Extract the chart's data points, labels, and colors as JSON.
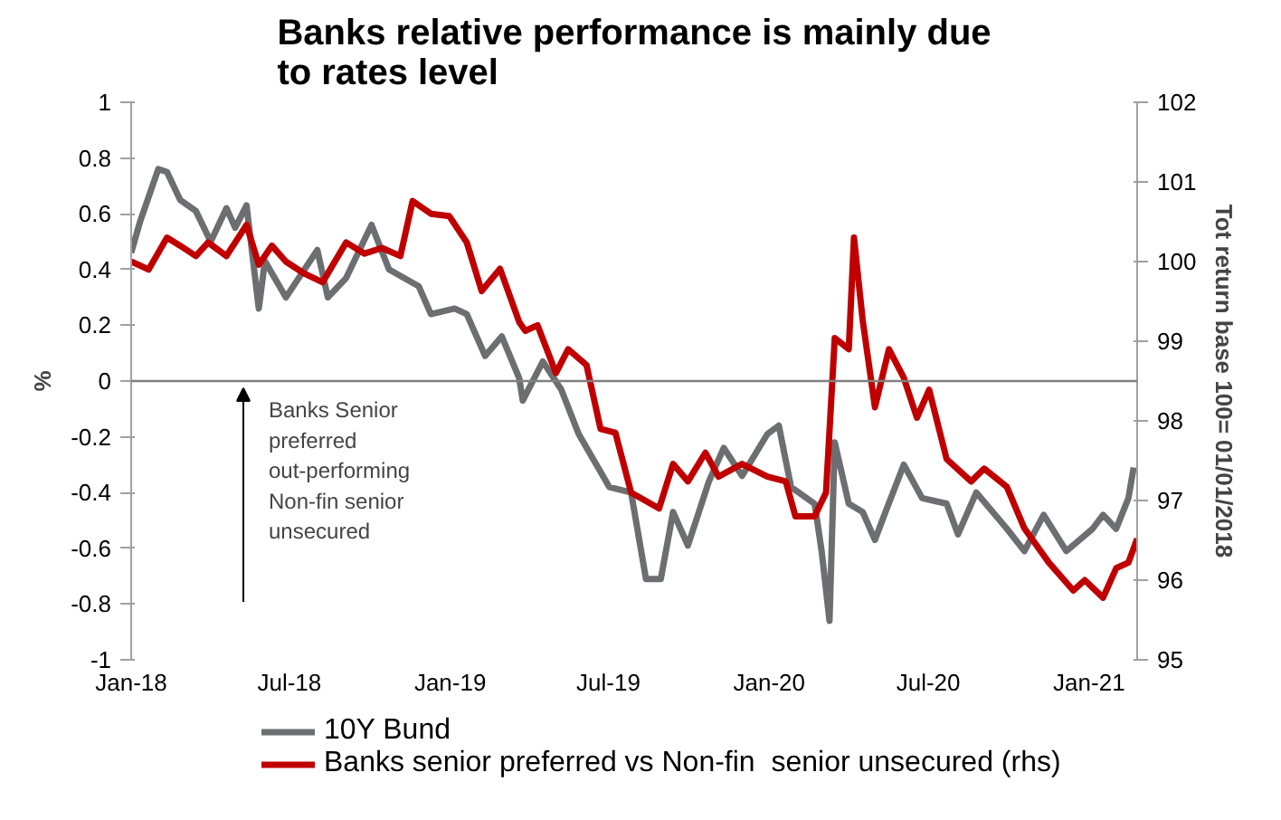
{
  "chart_data": {
    "type": "line",
    "title": "Banks relative performance is mainly due to rates level",
    "ylabel": "%",
    "y2label": "Tot return base 100= 01/01/2018",
    "xlim": [
      "2018-01-01",
      "2021-02-25"
    ],
    "xticks": [
      {
        "value": "2018-01-01",
        "label": "Jan-18"
      },
      {
        "value": "2018-07-01",
        "label": "Jul-18"
      },
      {
        "value": "2019-01-01",
        "label": "Jan-19"
      },
      {
        "value": "2019-07-01",
        "label": "Jul-19"
      },
      {
        "value": "2020-01-01",
        "label": "Jan-20"
      },
      {
        "value": "2020-07-01",
        "label": "Jul-20"
      },
      {
        "value": "2021-01-01",
        "label": "Jan-21"
      }
    ],
    "ylim": [
      -1,
      1
    ],
    "yticks": [
      -1,
      -0.8,
      -0.6,
      -0.4,
      -0.2,
      0,
      0.2,
      0.4,
      0.6,
      0.8,
      1
    ],
    "y2lim": [
      95,
      102
    ],
    "y2ticks": [
      95,
      96,
      97,
      98,
      99,
      100,
      101,
      102
    ],
    "grid": false,
    "legend": "bottom",
    "line_style": "solid",
    "marker": "none",
    "ref_lines": [
      {
        "axis": "y",
        "value": 0,
        "color": "#808080"
      }
    ],
    "annotations": [
      "Banks Senior preferred out-performing Non-fin senior unsecured"
    ],
    "series": [
      {
        "name": "10Y Bund",
        "color": "#6d6e71",
        "x": [
          "2018-01-01",
          "2018-01-11",
          "2018-02-01",
          "2018-02-11",
          "2018-02-26",
          "2018-03-16",
          "2018-04-02",
          "2018-04-20",
          "2018-04-30",
          "2018-05-13",
          "2018-05-27",
          "2018-06-03",
          "2018-06-27",
          "2018-08-02",
          "2018-08-14",
          "2018-09-04",
          "2018-10-03",
          "2018-10-23",
          "2018-11-26",
          "2018-12-10",
          "2019-01-06",
          "2019-01-20",
          "2019-02-10",
          "2019-03-01",
          "2019-03-21",
          "2019-03-25",
          "2019-04-17",
          "2019-05-08",
          "2019-05-28",
          "2019-07-02",
          "2019-07-27",
          "2019-08-13",
          "2019-08-30",
          "2019-09-13",
          "2019-09-30",
          "2019-10-24",
          "2019-11-10",
          "2019-12-01",
          "2019-12-30",
          "2020-01-12",
          "2020-01-26",
          "2020-02-22",
          "2020-03-01",
          "2020-03-10",
          "2020-03-16",
          "2020-04-01",
          "2020-04-17",
          "2020-05-01",
          "2020-05-13",
          "2020-06-03",
          "2020-06-24",
          "2020-07-22",
          "2020-08-04",
          "2020-08-25",
          "2020-09-29",
          "2020-10-19",
          "2020-11-10",
          "2020-12-06",
          "2021-01-05",
          "2021-01-17",
          "2021-02-01",
          "2021-02-15",
          "2021-02-21"
        ],
        "values": [
          0.46,
          0.57,
          0.76,
          0.75,
          0.65,
          0.61,
          0.5,
          0.62,
          0.55,
          0.63,
          0.26,
          0.43,
          0.3,
          0.47,
          0.3,
          0.37,
          0.56,
          0.4,
          0.34,
          0.24,
          0.26,
          0.24,
          0.09,
          0.16,
          0.01,
          -0.07,
          0.07,
          -0.03,
          -0.19,
          -0.38,
          -0.4,
          -0.71,
          -0.71,
          -0.47,
          -0.59,
          -0.36,
          -0.24,
          -0.34,
          -0.19,
          -0.16,
          -0.38,
          -0.44,
          -0.61,
          -0.86,
          -0.22,
          -0.44,
          -0.47,
          -0.57,
          -0.47,
          -0.3,
          -0.42,
          -0.44,
          -0.55,
          -0.4,
          -0.53,
          -0.61,
          -0.48,
          -0.61,
          -0.53,
          -0.48,
          -0.53,
          -0.42,
          -0.31
        ]
      },
      {
        "name": "Banks senior preferred vs Non-fin  senior unsecured (rhs)",
        "color": "#c00000",
        "axis": "y2",
        "x": [
          "2018-01-01",
          "2018-01-21",
          "2018-02-11",
          "2018-02-26",
          "2018-03-16",
          "2018-03-30",
          "2018-04-20",
          "2018-05-13",
          "2018-05-27",
          "2018-06-11",
          "2018-06-27",
          "2018-07-18",
          "2018-08-08",
          "2018-09-04",
          "2018-09-25",
          "2018-10-15",
          "2018-11-05",
          "2018-11-19",
          "2018-12-10",
          "2018-12-31",
          "2019-01-20",
          "2019-02-06",
          "2019-02-27",
          "2019-03-21",
          "2019-03-28",
          "2019-04-11",
          "2019-05-02",
          "2019-05-16",
          "2019-06-06",
          "2019-06-22",
          "2019-07-09",
          "2019-07-27",
          "2019-08-28",
          "2019-09-13",
          "2019-09-30",
          "2019-10-20",
          "2019-11-04",
          "2019-12-01",
          "2019-12-30",
          "2020-01-20",
          "2020-01-31",
          "2020-02-22",
          "2020-03-06",
          "2020-03-16",
          "2020-04-01",
          "2020-04-07",
          "2020-04-17",
          "2020-05-01",
          "2020-05-17",
          "2020-06-03",
          "2020-06-18",
          "2020-07-02",
          "2020-07-22",
          "2020-08-19",
          "2020-09-03",
          "2020-09-29",
          "2020-10-19",
          "2020-11-16",
          "2020-12-14",
          "2020-12-27",
          "2021-01-17",
          "2021-02-01",
          "2021-02-15",
          "2021-02-25"
        ],
        "values": [
          100.0,
          99.9,
          100.3,
          100.2,
          100.07,
          100.24,
          100.07,
          100.46,
          99.96,
          100.2,
          100.0,
          99.85,
          99.74,
          100.24,
          100.1,
          100.17,
          100.07,
          100.76,
          100.6,
          100.57,
          100.24,
          99.63,
          99.91,
          99.24,
          99.13,
          99.2,
          98.6,
          98.9,
          98.7,
          97.9,
          97.85,
          97.1,
          96.9,
          97.46,
          97.24,
          97.6,
          97.3,
          97.46,
          97.3,
          97.24,
          96.8,
          96.8,
          97.1,
          99.04,
          98.9,
          100.3,
          99.26,
          98.17,
          98.9,
          98.54,
          98.04,
          98.39,
          97.52,
          97.24,
          97.4,
          97.17,
          96.65,
          96.22,
          95.87,
          96.0,
          95.78,
          96.15,
          96.22,
          96.52
        ]
      }
    ]
  }
}
